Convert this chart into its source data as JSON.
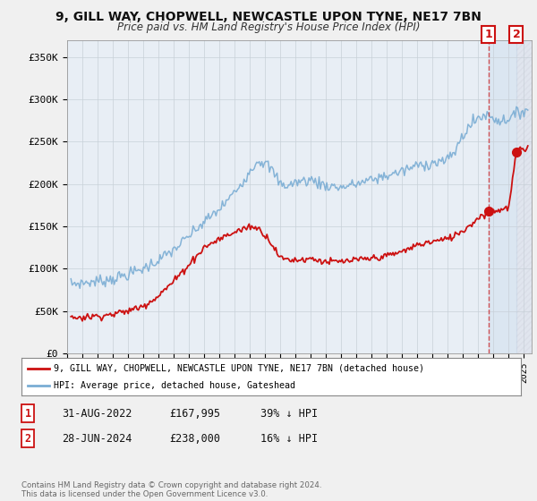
{
  "title": "9, GILL WAY, CHOPWELL, NEWCASTLE UPON TYNE, NE17 7BN",
  "subtitle": "Price paid vs. HM Land Registry's House Price Index (HPI)",
  "hpi_color": "#7aadd4",
  "price_color": "#cc1111",
  "background_color": "#f0f0f0",
  "plot_bg_color": "#e8eef5",
  "ylabel_ticks": [
    "£0",
    "£50K",
    "£100K",
    "£150K",
    "£200K",
    "£250K",
    "£300K",
    "£350K"
  ],
  "ytick_values": [
    0,
    50000,
    100000,
    150000,
    200000,
    250000,
    300000,
    350000
  ],
  "ylim": [
    0,
    370000
  ],
  "xlim_start": 1995.25,
  "xlim_end": 2025.5,
  "transaction1_x": 2022.667,
  "transaction1_y": 167995,
  "transaction2_x": 2024.5,
  "transaction2_y": 238000,
  "shade_x1": 2022.667,
  "shade_x2": 2024.5,
  "legend_line1": "9, GILL WAY, CHOPWELL, NEWCASTLE UPON TYNE, NE17 7BN (detached house)",
  "legend_line2": "HPI: Average price, detached house, Gateshead",
  "footnote": "Contains HM Land Registry data © Crown copyright and database right 2024.\nThis data is licensed under the Open Government Licence v3.0."
}
